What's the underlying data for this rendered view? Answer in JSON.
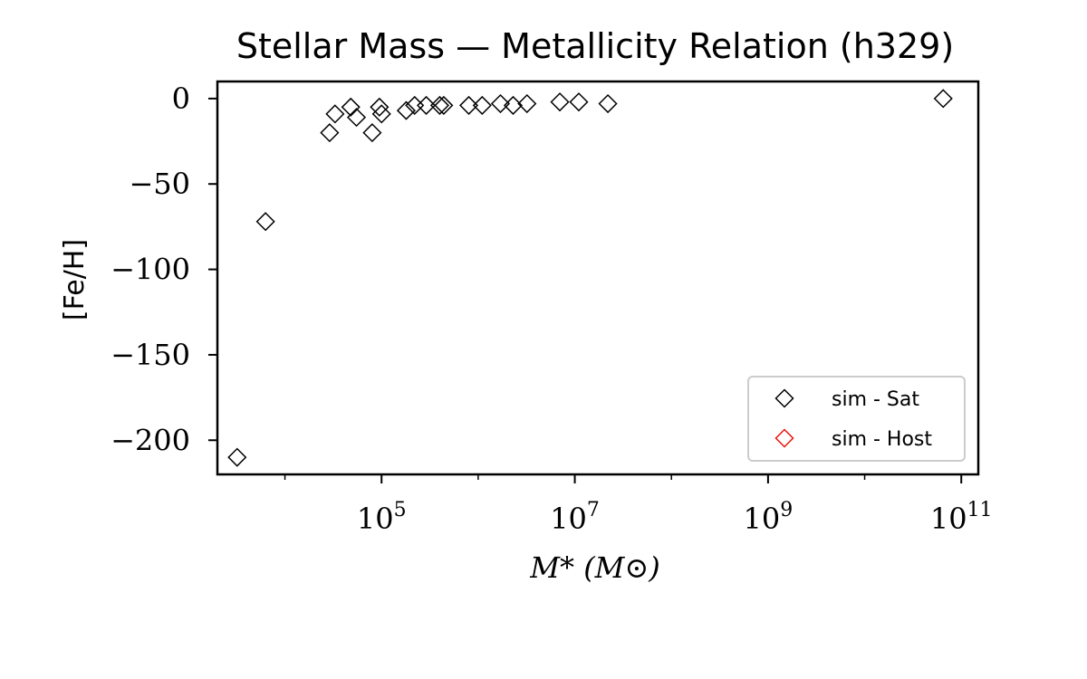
{
  "chart_data": {
    "type": "scatter",
    "title": "Stellar Mass — Metallicity Relation (h329)",
    "xlabel": "M* (M⊙)",
    "ylabel": "[Fe/H]",
    "x_scale": "log",
    "xlim": [
      2000,
      150000000000
    ],
    "ylim": [
      -220,
      10
    ],
    "x_ticks": [
      {
        "value": 100000,
        "base": "10",
        "exp": "5"
      },
      {
        "value": 10000000,
        "base": "10",
        "exp": "7"
      },
      {
        "value": 1000000000,
        "base": "10",
        "exp": "9"
      },
      {
        "value": 100000000000,
        "base": "10",
        "exp": "11"
      }
    ],
    "y_ticks": [
      {
        "value": 0,
        "label": "0"
      },
      {
        "value": -50,
        "label": "−50"
      },
      {
        "value": -100,
        "label": "−100"
      },
      {
        "value": -150,
        "label": "−150"
      },
      {
        "value": -200,
        "label": "−200"
      }
    ],
    "grid": false,
    "legend_position": "lower-right",
    "marker": "diamond-open",
    "series": [
      {
        "name": "sim - Sat",
        "color": "#000000",
        "points": [
          {
            "x": 3200,
            "y": -210
          },
          {
            "x": 6300,
            "y": -72
          },
          {
            "x": 29000,
            "y": -20
          },
          {
            "x": 33000,
            "y": -9
          },
          {
            "x": 48000,
            "y": -5
          },
          {
            "x": 55000,
            "y": -11
          },
          {
            "x": 80000,
            "y": -20
          },
          {
            "x": 95000,
            "y": -5
          },
          {
            "x": 100000,
            "y": -9
          },
          {
            "x": 180000,
            "y": -7
          },
          {
            "x": 220000,
            "y": -4
          },
          {
            "x": 290000,
            "y": -4
          },
          {
            "x": 400000,
            "y": -4
          },
          {
            "x": 440000,
            "y": -4
          },
          {
            "x": 800000,
            "y": -4
          },
          {
            "x": 1100000,
            "y": -4
          },
          {
            "x": 1700000,
            "y": -3
          },
          {
            "x": 2300000,
            "y": -4
          },
          {
            "x": 3200000,
            "y": -3
          },
          {
            "x": 7000000,
            "y": -2
          },
          {
            "x": 11000000,
            "y": -2
          },
          {
            "x": 22000000,
            "y": -3
          },
          {
            "x": 65000000000,
            "y": 0
          }
        ]
      },
      {
        "name": "sim - Host",
        "color": "#e8150b",
        "points": []
      }
    ]
  }
}
